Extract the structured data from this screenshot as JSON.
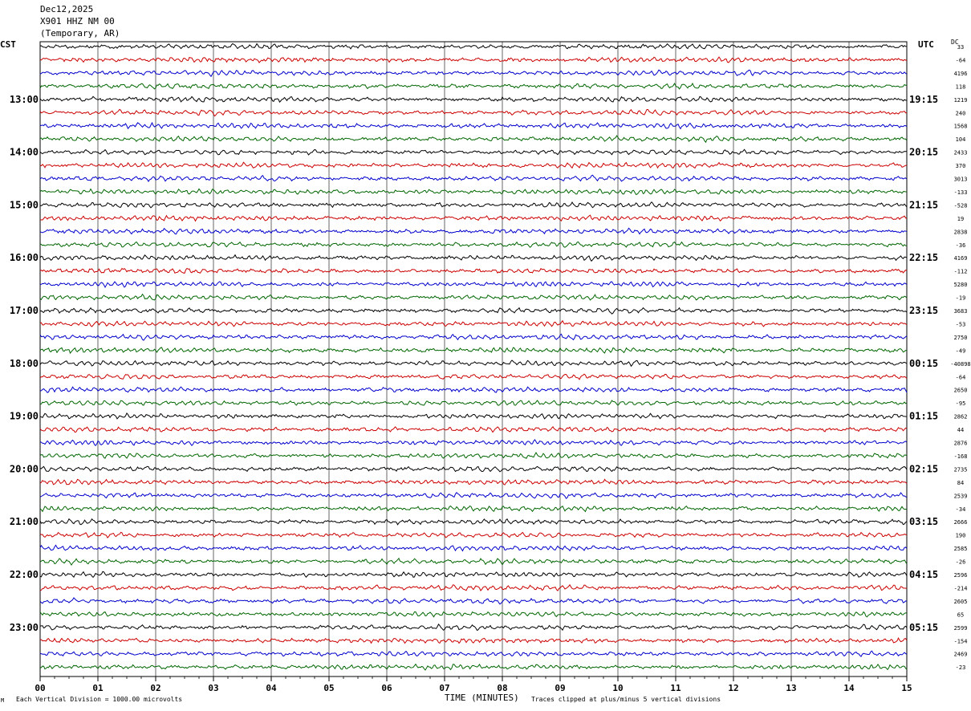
{
  "header": {
    "date": "Dec12,2025",
    "station": "X901 HHZ NM 00",
    "location": "(Temporary, AR)"
  },
  "left_timezone": "CST",
  "right_timezone": "UTC",
  "dc_label": "DC",
  "footer": {
    "scale": "Each Vertical Division = 1000.00 microvolts",
    "clip": "Traces clipped at plus/minus 5 vertical divisions",
    "corner_mark": "M"
  },
  "colors": {
    "trace_cycle": [
      "#000000",
      "#cc0000",
      "#0000cc",
      "#006600"
    ],
    "grid": "#000000",
    "background": "#ffffff"
  },
  "chart_data": {
    "type": "line",
    "subtype": "helicorder",
    "xlabel": "TIME (MINUTES)",
    "x_ticks": [
      "00",
      "01",
      "02",
      "03",
      "04",
      "05",
      "06",
      "07",
      "08",
      "09",
      "10",
      "11",
      "12",
      "13",
      "14",
      "15"
    ],
    "xlim": [
      0,
      15
    ],
    "minutes_per_line": 15,
    "line_count": 48,
    "left_hour_labels": [
      "13:00",
      "14:00",
      "15:00",
      "16:00",
      "17:00",
      "18:00",
      "19:00",
      "20:00",
      "21:00",
      "22:00",
      "23:00"
    ],
    "right_hour_labels": [
      "19:15",
      "20:15",
      "21:15",
      "22:15",
      "23:15",
      "00:15",
      "01:15",
      "02:15",
      "03:15",
      "04:15",
      "05:15"
    ],
    "dc_offsets": [
      "33",
      "-64",
      "4196",
      "118",
      "1219",
      "240",
      "1568",
      "104",
      "2433",
      "370",
      "3013",
      "-133",
      "-528",
      "19",
      "2838",
      "-36",
      "4169",
      "-112",
      "5280",
      "-19",
      "3683",
      "-53",
      "2750",
      "-49",
      "-40898",
      "-64",
      "2650",
      "-95",
      "2862",
      "44",
      "2876",
      "-168",
      "2735",
      "84",
      "2539",
      "-34",
      "2666",
      "190",
      "2585",
      "-26",
      "2596",
      "-214",
      "2605",
      "65",
      "2599",
      "-154",
      "2469",
      "-23"
    ],
    "vertical_division_microvolts": 1000,
    "grid": true
  }
}
